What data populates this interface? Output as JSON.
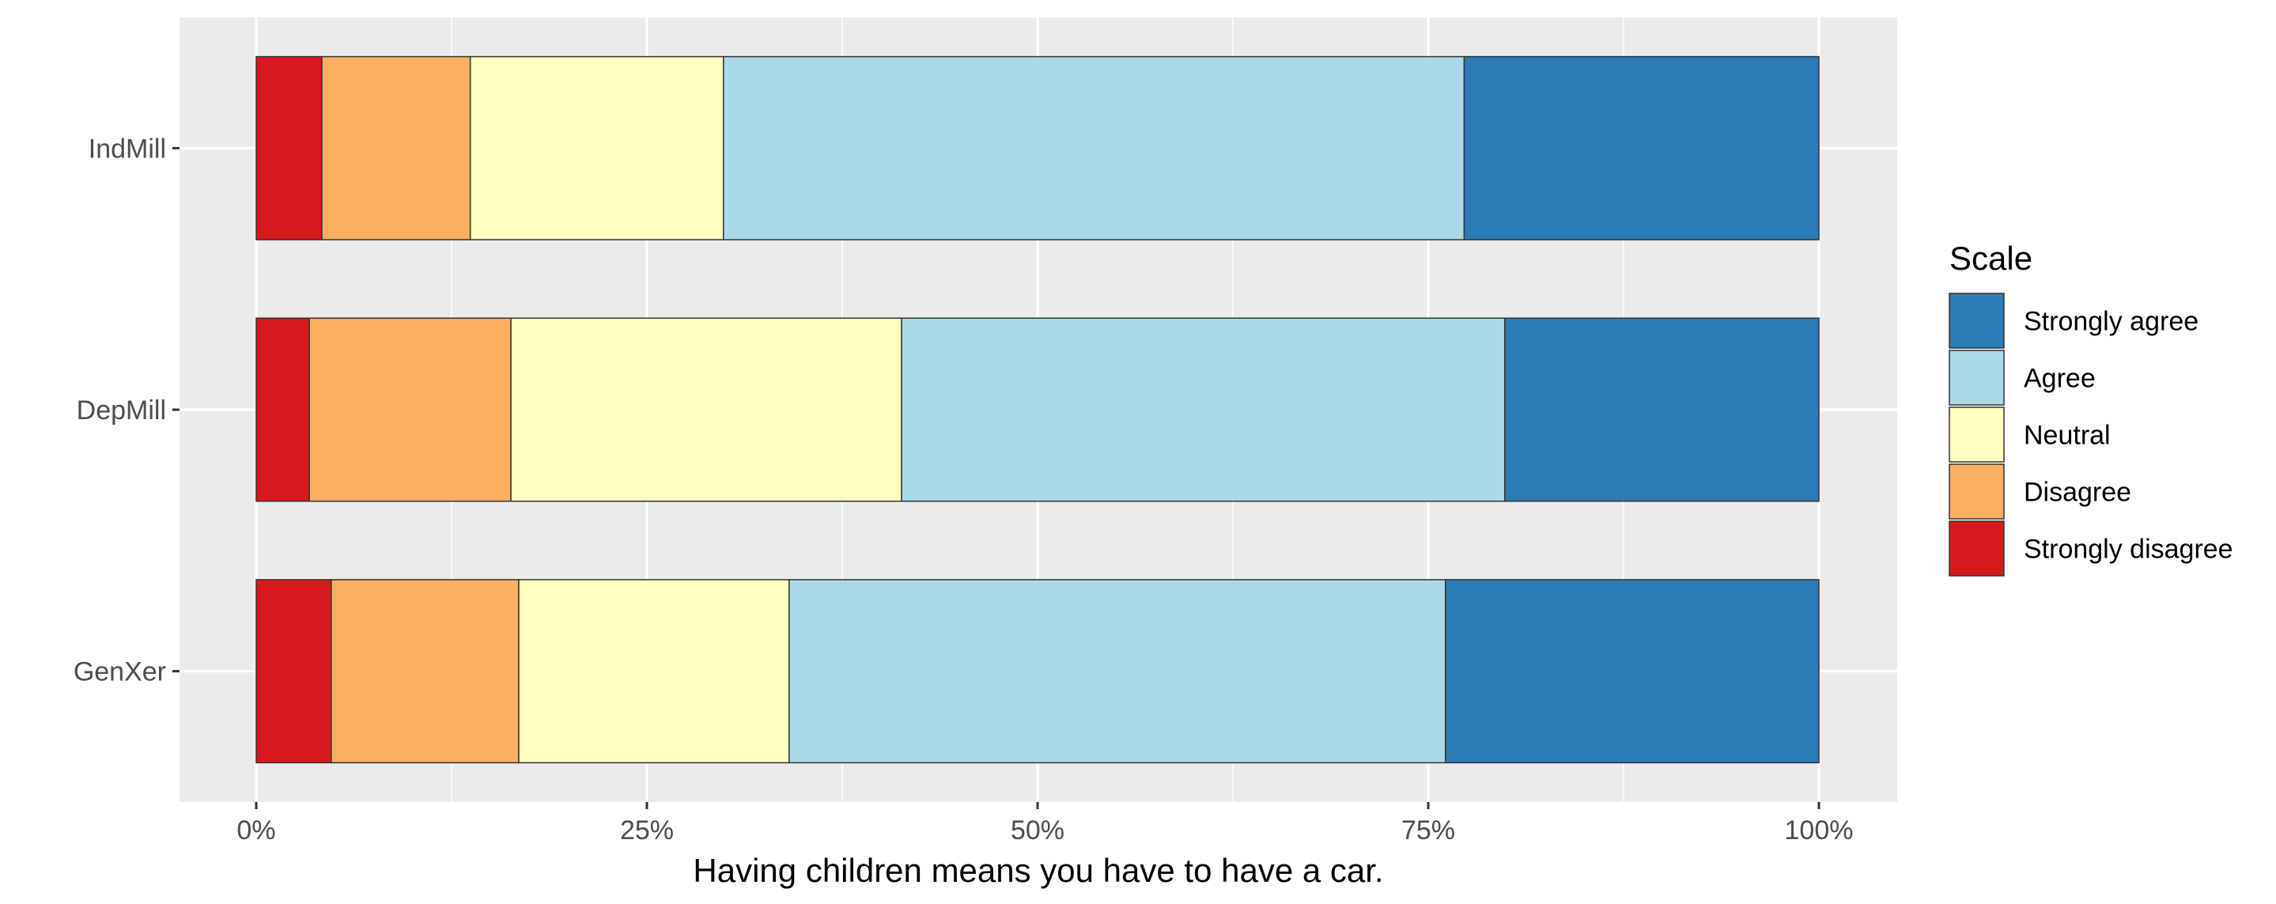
{
  "chart_data": {
    "type": "bar",
    "orientation": "horizontal",
    "stacked": "percent",
    "categories": [
      "IndMill",
      "DepMill",
      "GenXer"
    ],
    "xlabel": "Having children means you have to have a car.",
    "ylabel": "",
    "xlim": [
      0,
      100
    ],
    "x_ticks": [
      "0%",
      "25%",
      "50%",
      "75%",
      "100%"
    ],
    "x_tick_values": [
      0,
      25,
      50,
      75,
      100
    ],
    "grid": true,
    "legend": {
      "title": "Scale",
      "position": "right"
    },
    "series": [
      {
        "name": "Strongly disagree",
        "color": "#d7191c",
        "values": [
          4.2,
          3.4,
          4.8
        ]
      },
      {
        "name": "Disagree",
        "color": "#fdae61",
        "values": [
          9.5,
          12.9,
          12.0
        ]
      },
      {
        "name": "Neutral",
        "color": "#ffffbf",
        "values": [
          16.2,
          25.0,
          17.3
        ]
      },
      {
        "name": "Agree",
        "color": "#abd9e9",
        "values": [
          47.4,
          38.6,
          42.0
        ]
      },
      {
        "name": "Strongly agree",
        "color": "#2c7bb6",
        "values": [
          22.7,
          20.1,
          23.9
        ]
      }
    ],
    "legend_order": [
      "Strongly agree",
      "Agree",
      "Neutral",
      "Disagree",
      "Strongly disagree"
    ]
  }
}
